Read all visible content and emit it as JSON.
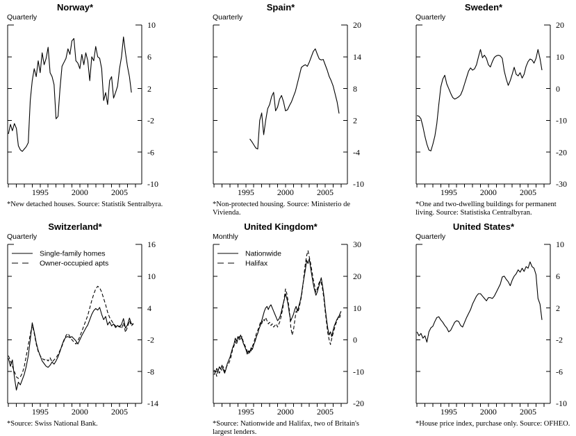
{
  "figure": {
    "background": "#ffffff",
    "ink": "#000000"
  },
  "chart_data": [
    {
      "type": "line",
      "title": "Norway*",
      "frequency": "Quarterly",
      "footnote": "*New detached houses.  Source: Statistik Sentralbyra.",
      "ylim": [
        -10,
        10
      ],
      "yticks": [
        10,
        6,
        2,
        -2,
        -6,
        -10
      ],
      "xlim": [
        1990.9,
        2007.8
      ],
      "xticks": [
        1991,
        1992,
        1993,
        1994,
        1995,
        1996,
        1997,
        1998,
        1999,
        2000,
        2001,
        2002,
        2003,
        2004,
        2005,
        2006,
        2007
      ],
      "xtick_labels": [
        "1995",
        "2000",
        "2005"
      ],
      "legend": false,
      "series": [
        {
          "style": "solid",
          "x_start": 1991.0,
          "x_step": 0.25,
          "values": [
            -3.7,
            -2.5,
            -3.3,
            -2.4,
            -3.0,
            -5.2,
            -5.7,
            -5.9,
            -5.6,
            -5.3,
            -4.8,
            0.5,
            3.0,
            4.5,
            3.5,
            5.5,
            4.0,
            6.5,
            5.0,
            5.8,
            7.2,
            4.0,
            3.5,
            2.5,
            -1.8,
            -1.5,
            2.0,
            4.8,
            5.3,
            5.8,
            7.0,
            6.3,
            8.0,
            8.3,
            5.5,
            5.2,
            4.5,
            6.3,
            5.0,
            6.5,
            5.5,
            3.0,
            6.0,
            5.5,
            7.3,
            6.0,
            5.8,
            4.5,
            0.5,
            1.5,
            0.0,
            3.0,
            3.5,
            0.8,
            1.5,
            2.3,
            4.5,
            6.0,
            8.5,
            6.5,
            4.8,
            3.5,
            1.5
          ]
        }
      ]
    },
    {
      "type": "line",
      "title": "Spain*",
      "frequency": "Quarterly",
      "footnote": "*Non-protected housing.  Source: Ministerio de Vivienda.",
      "ylim": [
        -10,
        20
      ],
      "yticks": [
        20,
        14,
        8,
        2,
        -4,
        -10
      ],
      "xlim": [
        1990.9,
        2007.8
      ],
      "xticks": [
        1991,
        1992,
        1993,
        1994,
        1995,
        1996,
        1997,
        1998,
        1999,
        2000,
        2001,
        2002,
        2003,
        2004,
        2005,
        2006,
        2007
      ],
      "xtick_labels": [
        "1995",
        "2000",
        "2005"
      ],
      "legend": false,
      "series": [
        {
          "style": "solid",
          "x_start": 1995.5,
          "x_step": 0.25,
          "values": [
            -1.5,
            -2.0,
            -2.6,
            -3.2,
            -3.4,
            2.0,
            3.4,
            -0.7,
            2.0,
            4.2,
            5.0,
            6.5,
            7.3,
            3.8,
            4.5,
            6.0,
            6.7,
            5.5,
            3.8,
            4.0,
            4.8,
            5.5,
            6.5,
            7.5,
            9.0,
            10.5,
            12.0,
            12.3,
            12.5,
            12.2,
            13.0,
            14.0,
            15.0,
            15.5,
            14.5,
            13.6,
            13.4,
            13.5,
            12.5,
            11.5,
            10.3,
            9.5,
            8.5,
            7.0,
            5.5,
            3.3
          ]
        }
      ]
    },
    {
      "type": "line",
      "title": "Sweden*",
      "frequency": "Quarterly",
      "footnote": "*One and two-dwelling buildings for permanent living.  Source: Statistiska Centralbyran.",
      "ylim": [
        -30,
        20
      ],
      "yticks": [
        20,
        10,
        0,
        -10,
        -20,
        -30
      ],
      "xlim": [
        1990.9,
        2007.8
      ],
      "xticks": [
        1991,
        1992,
        1993,
        1994,
        1995,
        1996,
        1997,
        1998,
        1999,
        2000,
        2001,
        2002,
        2003,
        2004,
        2005,
        2006,
        2007
      ],
      "xtick_labels": [
        "1995",
        "2000",
        "2005"
      ],
      "legend": false,
      "series": [
        {
          "style": "solid",
          "x_start": 1991.0,
          "x_step": 0.25,
          "values": [
            -8.5,
            -8.7,
            -9.5,
            -12.0,
            -15.0,
            -17.5,
            -19.3,
            -19.6,
            -17.5,
            -15.0,
            -11.0,
            -5.0,
            0.5,
            3.0,
            4.2,
            1.5,
            0.0,
            -1.5,
            -2.8,
            -3.3,
            -3.0,
            -2.6,
            -2.0,
            -0.5,
            1.5,
            3.5,
            5.5,
            6.5,
            5.8,
            6.2,
            7.5,
            10.0,
            12.3,
            9.7,
            10.5,
            9.5,
            7.5,
            6.8,
            8.5,
            9.8,
            10.3,
            10.5,
            10.3,
            9.5,
            5.5,
            3.0,
            1.0,
            2.5,
            4.5,
            6.7,
            4.5,
            4.0,
            5.0,
            3.3,
            4.5,
            7.0,
            8.5,
            9.3,
            9.0,
            8.0,
            9.5,
            12.3,
            9.5,
            5.8
          ]
        }
      ]
    },
    {
      "type": "line",
      "title": "Switzerland*",
      "frequency": "Quarterly",
      "footnote": "*Source: Swiss National Bank.",
      "ylim": [
        -14,
        16
      ],
      "yticks": [
        16,
        10,
        4,
        -2,
        -8,
        -14
      ],
      "xlim": [
        1990.9,
        2007.8
      ],
      "xticks": [
        1991,
        1992,
        1993,
        1994,
        1995,
        1996,
        1997,
        1998,
        1999,
        2000,
        2001,
        2002,
        2003,
        2004,
        2005,
        2006,
        2007
      ],
      "xtick_labels": [
        "1995",
        "2000",
        "2005"
      ],
      "legend": true,
      "series": [
        {
          "name": "Single-family homes",
          "style": "solid",
          "x_start": 1991.0,
          "x_step": 0.25,
          "values": [
            -5.5,
            -7.0,
            -5.8,
            -9.0,
            -11.5,
            -10.0,
            -10.5,
            -9.5,
            -8.5,
            -7.0,
            -5.0,
            -2.0,
            1.2,
            -0.5,
            -2.5,
            -4.0,
            -5.0,
            -6.0,
            -6.5,
            -7.0,
            -7.2,
            -6.8,
            -6.2,
            -6.6,
            -6.0,
            -5.2,
            -4.2,
            -3.0,
            -2.0,
            -1.5,
            -1.4,
            -1.6,
            -1.4,
            -1.8,
            -2.2,
            -2.8,
            -2.0,
            -1.2,
            -0.5,
            0.2,
            0.8,
            1.8,
            2.8,
            3.5,
            3.9,
            3.6,
            4.1,
            2.8,
            1.8,
            2.4,
            0.8,
            1.4,
            0.6,
            1.0,
            0.3,
            0.7,
            0.4,
            0.9,
            2.0,
            0.2,
            0.8,
            2.1,
            1.0,
            0.9
          ]
        },
        {
          "name": "Owner-occupied apts",
          "style": "dashed",
          "x_start": 1991.0,
          "x_step": 0.25,
          "values": [
            -5.0,
            -6.0,
            -7.0,
            -8.0,
            -9.0,
            -9.3,
            -9.0,
            -8.3,
            -7.0,
            -5.0,
            -3.0,
            -1.0,
            0.8,
            -0.8,
            -2.8,
            -4.2,
            -5.0,
            -5.5,
            -5.8,
            -5.6,
            -6.0,
            -5.4,
            -6.2,
            -5.8,
            -5.4,
            -4.8,
            -4.0,
            -3.2,
            -2.2,
            -1.2,
            -0.8,
            -1.4,
            -2.0,
            -2.4,
            -2.8,
            -2.2,
            -1.4,
            -0.4,
            0.6,
            1.6,
            2.6,
            4.0,
            5.4,
            6.6,
            7.6,
            8.1,
            7.8,
            7.0,
            5.8,
            4.6,
            3.2,
            2.2,
            1.6,
            1.0,
            0.6,
            0.3,
            0.6,
            0.1,
            1.2,
            -0.6,
            0.4,
            1.6,
            0.6,
            1.1
          ]
        }
      ]
    },
    {
      "type": "line",
      "title": "United Kingdom*",
      "frequency": "Monthly",
      "footnote": "*Source: Nationwide and Halifax, two of Britain's largest lenders.",
      "ylim": [
        -20,
        30
      ],
      "yticks": [
        30,
        20,
        10,
        0,
        -10,
        -20
      ],
      "xlim": [
        1990.9,
        2007.8
      ],
      "xticks": [
        1991,
        1992,
        1993,
        1994,
        1995,
        1996,
        1997,
        1998,
        1999,
        2000,
        2001,
        2002,
        2003,
        2004,
        2005,
        2006,
        2007
      ],
      "xtick_labels": [
        "1995",
        "2000",
        "2005"
      ],
      "legend": true,
      "series": [
        {
          "name": "Nationwide",
          "style": "solid",
          "x_start": 1991.0,
          "x_step": 0.16667,
          "values": [
            -9.5,
            -10.2,
            -9.0,
            -9.8,
            -8.5,
            -9.2,
            -8.0,
            -9.5,
            -10.5,
            -9.2,
            -7.5,
            -6.5,
            -5.5,
            -4.0,
            -2.5,
            -1.5,
            0.5,
            -0.5,
            1.0,
            0.0,
            1.5,
            0.5,
            -1.0,
            -2.0,
            -3.0,
            -4.5,
            -3.5,
            -4.0,
            -2.5,
            -3.0,
            -1.5,
            -0.5,
            1.0,
            2.0,
            3.5,
            4.5,
            6.0,
            7.5,
            9.0,
            10.0,
            10.5,
            9.5,
            10.5,
            11.0,
            10.0,
            9.0,
            8.0,
            7.0,
            6.0,
            6.5,
            7.5,
            9.0,
            11.0,
            12.5,
            14.5,
            13.0,
            11.0,
            8.0,
            6.0,
            7.0,
            8.0,
            9.5,
            10.5,
            9.0,
            10.5,
            12.0,
            14.0,
            17.0,
            19.5,
            22.0,
            25.0,
            24.0,
            25.5,
            22.5,
            20.0,
            17.5,
            15.5,
            14.0,
            15.0,
            16.5,
            18.0,
            19.5,
            17.0,
            14.0,
            10.0,
            6.5,
            3.5,
            1.5,
            2.5,
            1.0,
            3.0,
            4.5,
            5.5,
            6.5,
            7.0,
            8.0,
            9.0
          ]
        },
        {
          "name": "Halifax",
          "style": "dashed",
          "x_start": 1991.0,
          "x_step": 0.16667,
          "values": [
            -11.0,
            -10.0,
            -11.5,
            -9.5,
            -10.5,
            -9.0,
            -9.8,
            -8.5,
            -10.0,
            -8.8,
            -8.0,
            -7.5,
            -6.5,
            -5.0,
            -3.0,
            -2.0,
            -0.5,
            -1.5,
            0.5,
            1.0,
            0.0,
            1.0,
            -0.5,
            -1.5,
            -2.5,
            -3.5,
            -4.5,
            -3.0,
            -3.5,
            -2.0,
            -1.0,
            0.5,
            2.0,
            3.0,
            4.0,
            5.5,
            5.0,
            6.5,
            6.0,
            7.0,
            6.0,
            5.0,
            5.5,
            4.5,
            5.0,
            4.0,
            4.5,
            5.0,
            4.0,
            5.0,
            6.0,
            8.0,
            10.0,
            13.0,
            16.0,
            14.5,
            12.0,
            9.0,
            4.0,
            1.5,
            3.0,
            6.0,
            9.0,
            8.5,
            9.5,
            11.5,
            13.5,
            16.5,
            20.5,
            24.0,
            26.5,
            28.0,
            26.0,
            24.0,
            21.5,
            19.0,
            17.0,
            15.0,
            16.0,
            17.5,
            18.5,
            18.0,
            16.0,
            13.0,
            9.0,
            5.5,
            2.0,
            0.0,
            -1.5,
            0.5,
            2.0,
            3.5,
            5.0,
            6.0,
            7.5,
            7.0,
            8.5
          ]
        }
      ]
    },
    {
      "type": "line",
      "title": "United States*",
      "frequency": "Quarterly",
      "footnote": "*House price index, purchase only.  Source: OFHEO.",
      "ylim": [
        -10,
        10
      ],
      "yticks": [
        10,
        6,
        2,
        -2,
        -6,
        -10
      ],
      "xlim": [
        1990.9,
        2007.8
      ],
      "xticks": [
        1991,
        1992,
        1993,
        1994,
        1995,
        1996,
        1997,
        1998,
        1999,
        2000,
        2001,
        2002,
        2003,
        2004,
        2005,
        2006,
        2007
      ],
      "xtick_labels": [
        "1995",
        "2000",
        "2005"
      ],
      "legend": false,
      "series": [
        {
          "style": "solid",
          "x_start": 1991.0,
          "x_step": 0.25,
          "values": [
            -1.0,
            -1.5,
            -1.2,
            -1.8,
            -1.5,
            -2.3,
            -1.0,
            -0.5,
            -0.3,
            0.3,
            0.8,
            0.9,
            0.5,
            0.2,
            -0.2,
            -0.5,
            -1.0,
            -0.8,
            -0.3,
            0.2,
            0.4,
            0.3,
            -0.2,
            -0.4,
            0.2,
            0.8,
            1.3,
            1.8,
            2.5,
            3.0,
            3.5,
            3.8,
            3.8,
            3.5,
            3.2,
            2.9,
            3.3,
            3.3,
            3.2,
            3.5,
            4.0,
            4.5,
            5.0,
            5.9,
            6.0,
            5.6,
            5.3,
            4.8,
            5.5,
            6.0,
            6.3,
            6.8,
            6.5,
            7.0,
            6.6,
            7.2,
            7.0,
            7.8,
            7.2,
            7.0,
            6.2,
            3.2,
            2.5,
            0.5
          ]
        }
      ]
    }
  ]
}
